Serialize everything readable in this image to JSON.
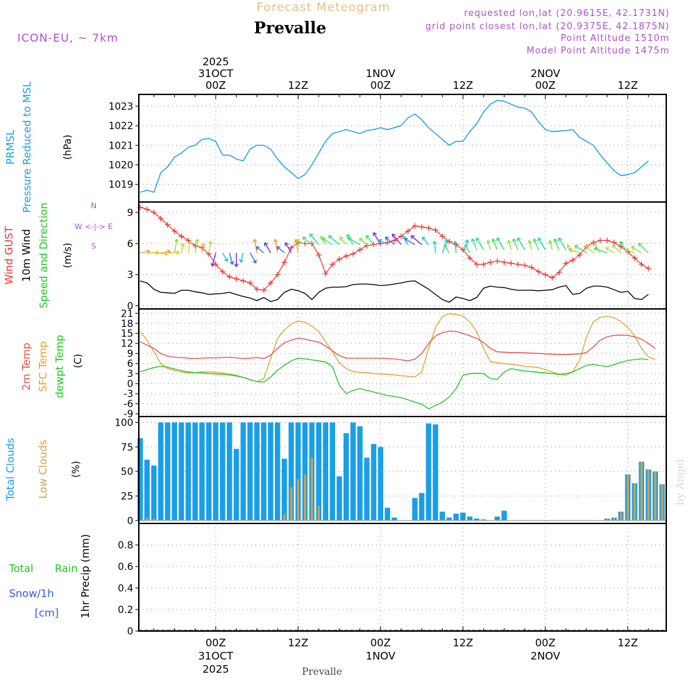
{
  "header": {
    "chart_title": "Forecast Meteogram",
    "location": "Prevalle",
    "model": "ICON-EU, ~ 7km",
    "requested_point": "requested lon,lat (20.9615E, 42.1731N)",
    "grid_point": "grid point closest lon,lat (20.9375E, 42.1875N)",
    "point_altitude": "Point Altitude 1510m",
    "model_altitude": "Model Point Altitude 1475m",
    "footer_location": "Prevalle",
    "credit": "by Angel"
  },
  "time_axis": {
    "top_labels": [
      {
        "t": 24,
        "lines": [
          "2025",
          "31OCT",
          "00Z"
        ]
      },
      {
        "t": 36,
        "lines": [
          "12Z"
        ]
      },
      {
        "t": 48,
        "lines": [
          "1NOV",
          "00Z"
        ]
      },
      {
        "t": 60,
        "lines": [
          "12Z"
        ]
      },
      {
        "t": 72,
        "lines": [
          "2NOV",
          "00Z"
        ]
      },
      {
        "t": 84,
        "lines": [
          "12Z"
        ]
      }
    ],
    "bottom_labels": [
      {
        "t": 24,
        "lines": [
          "00Z",
          "31OCT",
          "2025"
        ]
      },
      {
        "t": 36,
        "lines": [
          "12Z"
        ]
      },
      {
        "t": 48,
        "lines": [
          "00Z",
          "1NOV"
        ]
      },
      {
        "t": 60,
        "lines": [
          "12Z"
        ]
      },
      {
        "t": 72,
        "lines": [
          "00Z",
          "2NOV"
        ]
      },
      {
        "t": 84,
        "lines": [
          "12Z"
        ]
      }
    ],
    "range_hours": [
      12.8,
      89.6
    ],
    "gridline_hours": [
      24,
      36,
      48,
      60,
      72,
      84
    ]
  },
  "colors": {
    "pressure": "#1a9ee8",
    "gust": "#ee3333",
    "wind": "#000000",
    "temp2m": "#e05050",
    "sfc_temp": "#e0a030",
    "dewpoint": "#22c422",
    "total_clouds": "#1a9ee8",
    "low_clouds": "#d8a040",
    "precip_green": "#22c422",
    "precip_blue": "#3355ee",
    "label_purple": "#b050d0",
    "title_gold": "#e8c080"
  },
  "chart_data": [
    {
      "id": "pressure",
      "type": "line",
      "title": "PRMSL Pressure Reduced to MSL",
      "ylabel": "(hPa)",
      "side_labels": [
        "PRMSL",
        "Pressure Reduced to MSL"
      ],
      "yticks": [
        1019,
        1020,
        1021,
        1022,
        1023
      ],
      "ylim": [
        1018.1,
        1023.6
      ],
      "x_start": 13.0,
      "x_step": 1.0,
      "series": [
        {
          "name": "PRMSL",
          "values": [
            1018.6,
            1018.7,
            1018.6,
            1019.6,
            1019.9,
            1020.4,
            1020.6,
            1020.9,
            1021.0,
            1021.3,
            1021.35,
            1021.2,
            1020.5,
            1020.5,
            1020.3,
            1020.2,
            1020.8,
            1021.0,
            1021.0,
            1020.8,
            1020.3,
            1019.9,
            1019.6,
            1019.3,
            1019.5,
            1020.0,
            1020.6,
            1021.2,
            1021.6,
            1021.7,
            1021.8,
            1021.7,
            1021.6,
            1021.75,
            1021.8,
            1021.9,
            1021.8,
            1021.9,
            1022.0,
            1022.4,
            1022.6,
            1022.3,
            1021.9,
            1021.6,
            1021.3,
            1021.0,
            1021.2,
            1021.2,
            1021.7,
            1022.1,
            1022.7,
            1023.1,
            1023.3,
            1023.25,
            1023.1,
            1022.95,
            1022.9,
            1022.7,
            1022.2,
            1021.8,
            1021.7,
            1021.72,
            1021.75,
            1021.8,
            1021.4,
            1021.2,
            1021.0,
            1020.5,
            1020.1,
            1019.7,
            1019.45,
            1019.5,
            1019.6,
            1019.9,
            1020.2
          ]
        }
      ]
    },
    {
      "id": "wind",
      "type": "line",
      "title": "Wind GUST 10m Wind Speed and Direction",
      "ylabel": "(m/s)",
      "side_labels": [
        "Wind GUST",
        "10m Wind",
        "Speed and Direction"
      ],
      "compass": [
        "N",
        "W <-|-> E",
        "S"
      ],
      "yticks": [
        0,
        3,
        6,
        9
      ],
      "ylim": [
        -0.3,
        10.0
      ],
      "x_start": 13.0,
      "x_step": 1.0,
      "series": [
        {
          "name": "Wind GUST",
          "values": [
            9.5,
            9.3,
            9.0,
            8.4,
            7.8,
            7.2,
            6.7,
            6.3,
            5.8,
            5.6,
            5.0,
            4.0,
            3.3,
            2.8,
            2.6,
            2.4,
            2.2,
            1.6,
            1.5,
            2.2,
            3.0,
            4.2,
            5.6,
            6.1,
            6.0,
            6.0,
            4.9,
            3.1,
            4.0,
            4.5,
            4.8,
            5.0,
            5.4,
            5.8,
            5.9,
            6.0,
            6.1,
            6.3,
            6.7,
            7.2,
            7.7,
            7.6,
            7.5,
            7.3,
            6.7,
            6.2,
            5.9,
            5.4,
            4.6,
            4.0,
            4.0,
            4.2,
            4.3,
            4.2,
            4.1,
            4.0,
            3.9,
            3.7,
            3.3,
            3.0,
            2.7,
            3.2,
            4.1,
            4.4,
            4.9,
            5.7,
            6.1,
            6.3,
            6.3,
            6.1,
            5.7,
            5.2,
            4.6,
            4.0,
            3.6
          ]
        },
        {
          "name": "10m Wind",
          "values": [
            2.4,
            2.2,
            1.6,
            1.3,
            1.25,
            1.2,
            1.5,
            1.5,
            1.35,
            1.25,
            1.1,
            1.15,
            1.2,
            1.3,
            1.1,
            0.9,
            0.75,
            0.5,
            0.8,
            0.4,
            0.6,
            1.3,
            1.6,
            1.45,
            1.2,
            0.6,
            1.3,
            1.7,
            1.8,
            1.8,
            1.85,
            2.05,
            2.1,
            2.1,
            2.05,
            1.95,
            2.0,
            2.1,
            2.2,
            2.35,
            2.4,
            2.0,
            1.6,
            1.1,
            0.6,
            0.35,
            0.85,
            0.7,
            0.5,
            0.8,
            1.7,
            1.9,
            1.8,
            1.75,
            1.6,
            1.5,
            1.5,
            1.5,
            1.45,
            1.5,
            1.55,
            1.8,
            1.95,
            1.1,
            1.2,
            1.7,
            1.9,
            1.9,
            1.8,
            1.55,
            1.3,
            1.4,
            0.7,
            0.6,
            1.1
          ]
        }
      ]
    },
    {
      "id": "temperature",
      "type": "line",
      "title": "2m Temp SFC Temp dewpt Temp",
      "ylabel": "(C)",
      "side_labels": [
        "2m Temp",
        "SFC Temp",
        "dewpt Temp"
      ],
      "yticks": [
        -9,
        -6,
        -3,
        0,
        3,
        6,
        9,
        12,
        15,
        18,
        21
      ],
      "ylim": [
        -9.8,
        22.3
      ],
      "x_start": 13.0,
      "x_step": 1.0,
      "series": [
        {
          "name": "2m Temp",
          "values": [
            12.5,
            11.5,
            10.5,
            9.0,
            8.2,
            7.9,
            7.8,
            7.6,
            7.5,
            7.6,
            7.7,
            7.7,
            7.8,
            7.9,
            7.7,
            7.5,
            7.6,
            7.8,
            7.5,
            8.5,
            10.5,
            12.2,
            13.0,
            13.6,
            13.3,
            12.8,
            12.4,
            11.2,
            9.8,
            8.4,
            7.6,
            7.6,
            7.6,
            7.6,
            7.6,
            7.6,
            7.5,
            7.4,
            7.1,
            6.8,
            7.3,
            9.0,
            12.0,
            14.2,
            15.2,
            15.7,
            15.6,
            15.0,
            14.3,
            13.5,
            12.3,
            10.5,
            9.5,
            9.4,
            9.3,
            9.3,
            9.2,
            9.1,
            9.0,
            8.9,
            8.8,
            8.7,
            8.7,
            8.8,
            8.9,
            9.3,
            11.0,
            13.0,
            14.0,
            14.4,
            14.5,
            14.4,
            14.0,
            13.3,
            12.0,
            10.5
          ]
        },
        {
          "name": "SFC Temp",
          "values": [
            15.5,
            13.0,
            9.5,
            6.0,
            4.5,
            4.0,
            3.5,
            3.2,
            3.3,
            3.5,
            3.5,
            3.4,
            3.2,
            2.9,
            2.5,
            1.9,
            1.2,
            0.6,
            1.5,
            7.5,
            13.5,
            16.0,
            17.8,
            18.7,
            18.3,
            17.2,
            15.5,
            12.5,
            9.5,
            6.2,
            4.5,
            3.6,
            3.4,
            3.3,
            3.0,
            2.9,
            2.8,
            2.6,
            2.4,
            2.2,
            2.0,
            3.5,
            10.5,
            16.8,
            20.0,
            20.9,
            20.6,
            20.2,
            18.4,
            15.5,
            10.5,
            6.6,
            6.2,
            6.0,
            5.8,
            5.5,
            5.2,
            5.0,
            4.8,
            4.2,
            3.5,
            2.8,
            2.5,
            3.6,
            7.0,
            14.0,
            18.5,
            19.8,
            20.1,
            19.7,
            18.5,
            16.8,
            14.2,
            10.5,
            8.0,
            7.2
          ]
        },
        {
          "name": "dewpt Temp",
          "values": [
            3.5,
            4.2,
            4.8,
            5.2,
            4.9,
            4.4,
            3.9,
            3.5,
            3.3,
            3.2,
            3.0,
            2.9,
            2.8,
            2.6,
            2.3,
            1.9,
            1.2,
            0.6,
            0.5,
            2.0,
            4.0,
            5.5,
            6.8,
            7.6,
            7.4,
            7.1,
            6.8,
            6.5,
            5.0,
            -0.5,
            -3.0,
            -2.0,
            -1.5,
            -2.0,
            -2.5,
            -3.0,
            -3.5,
            -3.8,
            -4.2,
            -4.8,
            -5.5,
            -6.1,
            -7.5,
            -6.5,
            -5.5,
            -4.0,
            -1.5,
            2.5,
            3.0,
            3.1,
            3.0,
            1.5,
            1.3,
            3.5,
            4.5,
            4.1,
            3.8,
            3.6,
            3.4,
            3.2,
            3.0,
            2.8,
            3.0,
            3.5,
            4.5,
            5.5,
            5.7,
            5.4,
            5.1,
            5.7,
            6.4,
            6.9,
            7.2,
            7.4,
            7.2
          ]
        }
      ]
    },
    {
      "id": "clouds",
      "type": "bar",
      "title": "Total Clouds Low Clouds",
      "ylabel": "(%)",
      "side_labels": [
        "Total Clouds",
        "Low Clouds"
      ],
      "yticks": [
        0,
        25,
        50,
        75,
        100
      ],
      "ylim": [
        -3,
        106
      ],
      "x_start": 13.0,
      "x_step": 1.0,
      "series": [
        {
          "name": "Total Clouds",
          "values": [
            84,
            62,
            56,
            100,
            100,
            100,
            100,
            100,
            100,
            100,
            100,
            100,
            100,
            100,
            73,
            100,
            100,
            100,
            100,
            100,
            100,
            63,
            100,
            100,
            100,
            100,
            100,
            100,
            100,
            45,
            89,
            100,
            96,
            64,
            78,
            75,
            13,
            3,
            0,
            0,
            23,
            28,
            99,
            98,
            9,
            3,
            7,
            8,
            4,
            2,
            1,
            0,
            4,
            10,
            0,
            0,
            0,
            0,
            0,
            0,
            0,
            0,
            0,
            0,
            0,
            0,
            0,
            0,
            2,
            3,
            9,
            47,
            38,
            60,
            52,
            50,
            37
          ]
        },
        {
          "name": "Low Clouds",
          "values": [
            0,
            3,
            2,
            0,
            0,
            0,
            0,
            0,
            0,
            0,
            0,
            0,
            0,
            0,
            0,
            0,
            0,
            0,
            0,
            0,
            0,
            7,
            34,
            42,
            47,
            64,
            15,
            0,
            0,
            0,
            0,
            0,
            0,
            0,
            0,
            0,
            0,
            0,
            0,
            0,
            0,
            0,
            0,
            0,
            0,
            0,
            0,
            0,
            0,
            0,
            0,
            0,
            0,
            0,
            0,
            0,
            0,
            0,
            0,
            0,
            0,
            0,
            0,
            0,
            0,
            0,
            0,
            0,
            2,
            3,
            9,
            47,
            38,
            60,
            52,
            50,
            37
          ]
        }
      ]
    },
    {
      "id": "precip",
      "type": "bar",
      "title": "1hr Precip (mm)",
      "ylabel": "1hr Precip (mm)",
      "side_labels": [
        "Total",
        "Rain",
        "Snow/1h",
        "[cm]"
      ],
      "yticks": [
        0,
        0.2,
        0.4,
        0.6,
        0.8
      ],
      "ylim": [
        0,
        1.0
      ],
      "x_start": 13.0,
      "x_step": 1.0,
      "series": [
        {
          "name": "Total",
          "values": []
        },
        {
          "name": "Rain",
          "values": []
        },
        {
          "name": "Snow/1h",
          "values": []
        }
      ]
    }
  ]
}
